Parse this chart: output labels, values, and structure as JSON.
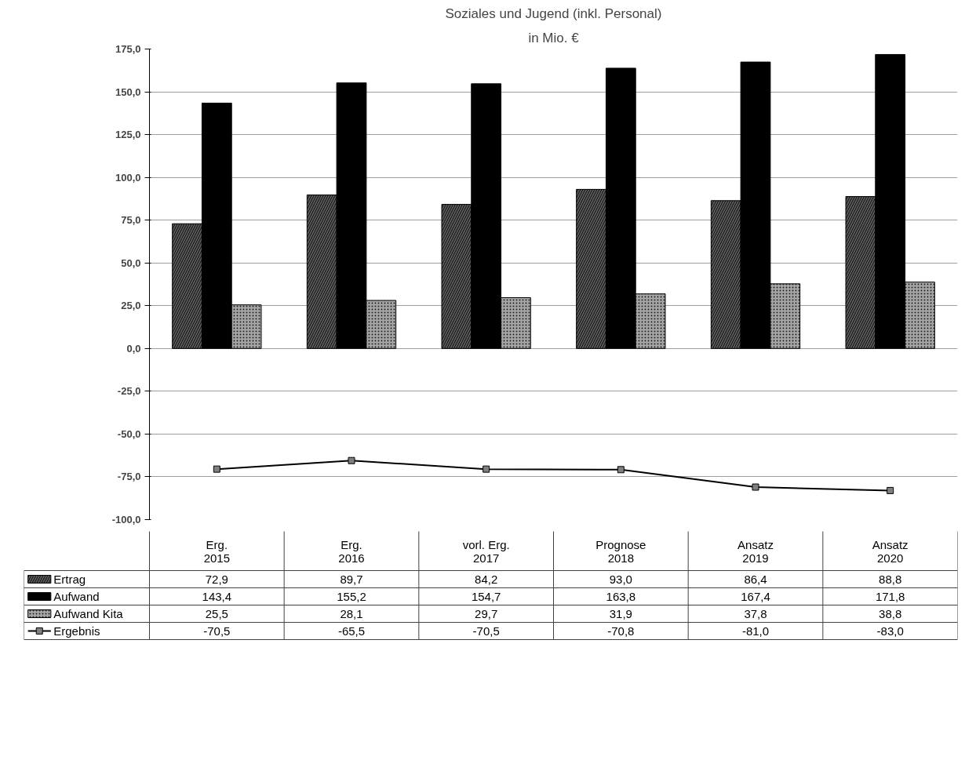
{
  "chart_data": {
    "type": "bar",
    "title": "Soziales und Jugend (inkl. Personal)",
    "subtitle": "in Mio. €",
    "categories": [
      "Erg. 2015",
      "Erg. 2016",
      "vorl. Erg. 2017",
      "Prognose 2018",
      "Ansatz 2019",
      "Ansatz 2020"
    ],
    "series": [
      {
        "name": "Ertrag",
        "color": "#595959",
        "values": [
          72.9,
          89.7,
          84.2,
          93.0,
          86.4,
          88.8
        ],
        "value_labels": [
          "72,9",
          "89,7",
          "84,2",
          "93,0",
          "86,4",
          "88,8"
        ]
      },
      {
        "name": "Aufwand",
        "color": "#000000",
        "values": [
          143.4,
          155.2,
          154.7,
          163.8,
          167.4,
          171.8
        ],
        "value_labels": [
          "143,4",
          "155,2",
          "154,7",
          "163,8",
          "167,4",
          "171,8"
        ]
      },
      {
        "name": "Aufwand Kita",
        "color": "#a6a6a6",
        "values": [
          25.5,
          28.1,
          29.7,
          31.9,
          37.8,
          38.8
        ],
        "value_labels": [
          "25,5",
          "28,1",
          "29,7",
          "31,9",
          "37,8",
          "38,8"
        ]
      },
      {
        "name": "Ergebnis",
        "type": "line",
        "color": "#000000",
        "marker": "square",
        "values": [
          -70.5,
          -65.5,
          -70.5,
          -70.8,
          -81.0,
          -83.0
        ],
        "value_labels": [
          "-70,5",
          "-65,5",
          "-70,5",
          "-70,8",
          "-81,0",
          "-83,0"
        ]
      }
    ],
    "ylim": [
      -100,
      175
    ],
    "yticks": [
      {
        "value": -100,
        "label": "-100,0"
      },
      {
        "value": -75,
        "label": "-75,0"
      },
      {
        "value": -50,
        "label": "-50,0"
      },
      {
        "value": -25,
        "label": "-25,0"
      },
      {
        "value": 0,
        "label": "0,0"
      },
      {
        "value": 25,
        "label": "25,0"
      },
      {
        "value": 50,
        "label": "50,0"
      },
      {
        "value": 75,
        "label": "75,0"
      },
      {
        "value": 100,
        "label": "100,0"
      },
      {
        "value": 125,
        "label": "125,0"
      },
      {
        "value": 150,
        "label": "150,0"
      },
      {
        "value": 175,
        "label": "175,0"
      }
    ],
    "grid": "y",
    "legend": "bottom"
  }
}
